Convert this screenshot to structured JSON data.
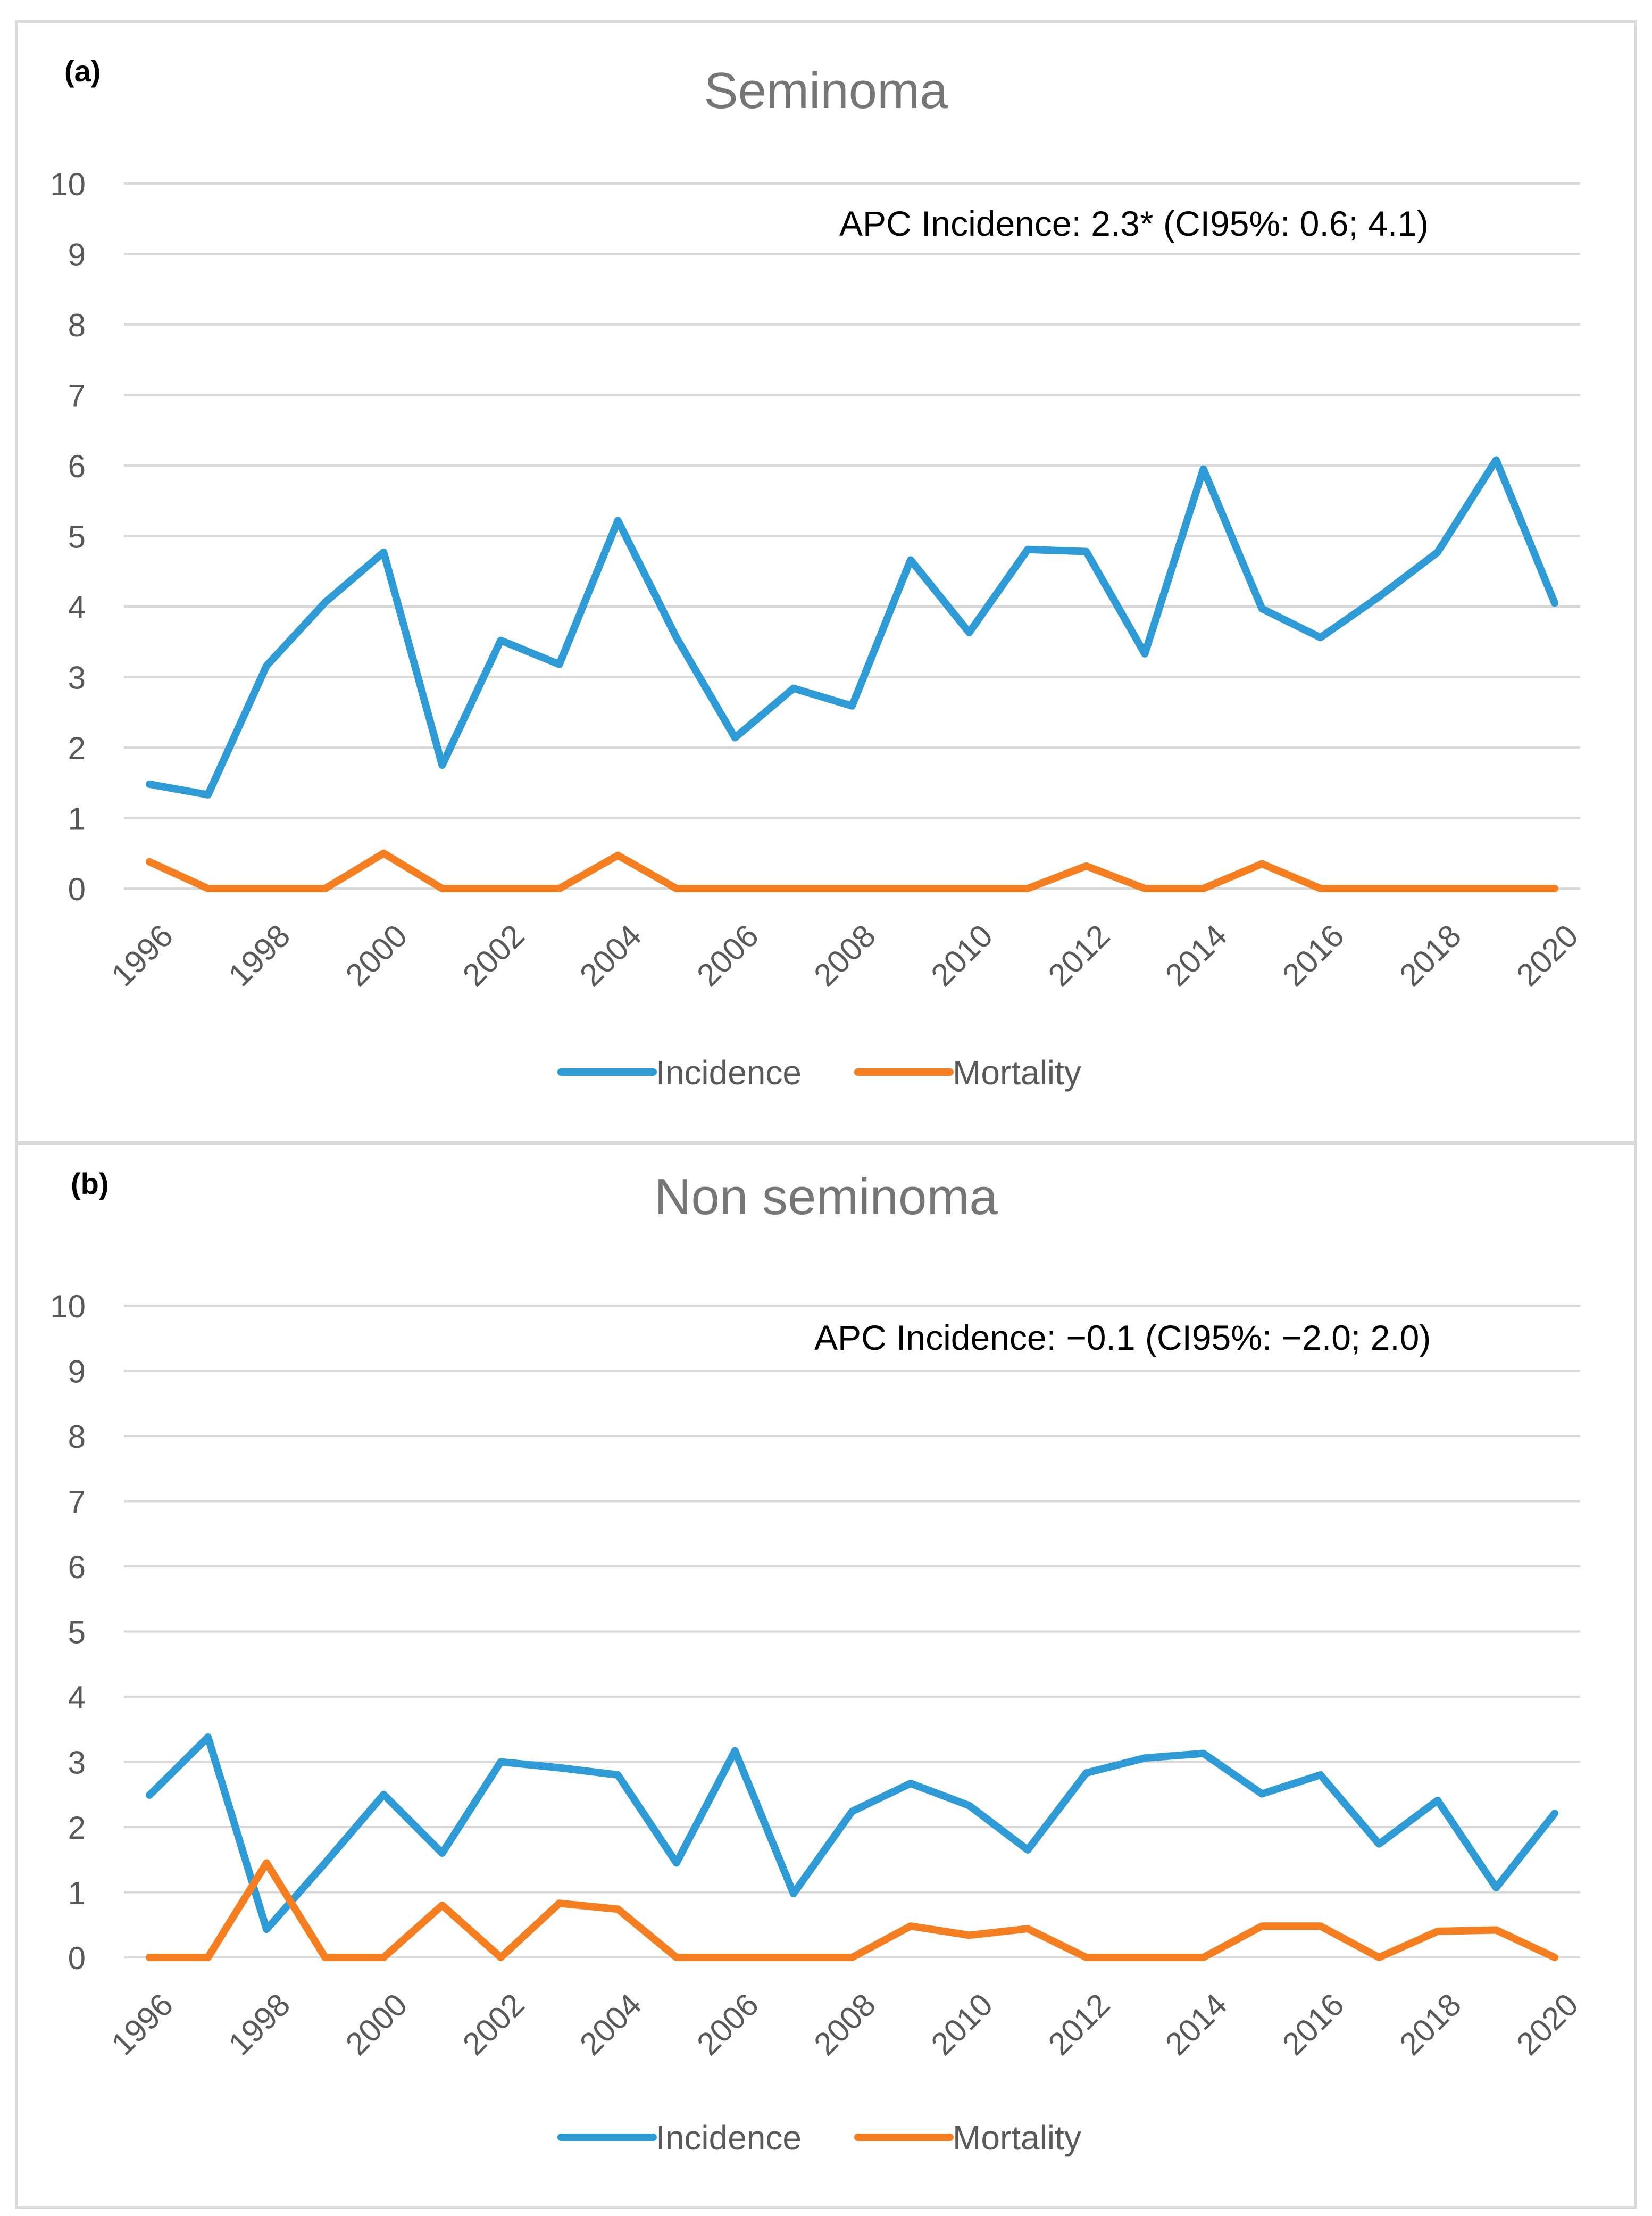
{
  "chart_data": [
    {
      "type": "line",
      "panel_label": "(a)",
      "title": "Seminoma",
      "annotation": "APC Incidence: 2.3* (CI95%: 0.6; 4.1)",
      "x": [
        1996,
        1997,
        1998,
        1999,
        2000,
        2001,
        2002,
        2003,
        2004,
        2005,
        2006,
        2007,
        2008,
        2009,
        2010,
        2011,
        2012,
        2013,
        2014,
        2015,
        2016,
        2017,
        2018,
        2019,
        2020
      ],
      "x_tick_labels": [
        "1996",
        "1998",
        "2000",
        "2002",
        "2004",
        "2006",
        "2008",
        "2010",
        "2012",
        "2014",
        "2016",
        "2018",
        "2020"
      ],
      "y_tick_labels": [
        "0",
        "1",
        "2",
        "3",
        "4",
        "5",
        "6",
        "7",
        "8",
        "9",
        "10"
      ],
      "ylim": [
        0,
        10
      ],
      "series": [
        {
          "name": "Incidence",
          "color": "#2e9bd6",
          "values": [
            1.48,
            1.33,
            3.16,
            4.06,
            4.77,
            1.75,
            3.52,
            3.18,
            5.22,
            3.56,
            2.14,
            2.84,
            2.59,
            4.66,
            3.63,
            4.81,
            4.78,
            3.33,
            5.95,
            3.97,
            3.56,
            4.14,
            4.77,
            6.08,
            4.05
          ]
        },
        {
          "name": "Mortality",
          "color": "#f57f20",
          "values": [
            0.38,
            0,
            0,
            0,
            0.5,
            0,
            0,
            0,
            0.47,
            0,
            0,
            0,
            0,
            0,
            0,
            0,
            0.32,
            0,
            0,
            0.35,
            0,
            0,
            0,
            0,
            0
          ]
        }
      ],
      "legend": [
        "Incidence",
        "Mortality"
      ],
      "grid": true
    },
    {
      "type": "line",
      "panel_label": "(b)",
      "title": "Non seminoma",
      "annotation": "APC Incidence: −0.1 (CI95%: −2.0; 2.0)",
      "x": [
        1996,
        1997,
        1998,
        1999,
        2000,
        2001,
        2002,
        2003,
        2004,
        2005,
        2006,
        2007,
        2008,
        2009,
        2010,
        2011,
        2012,
        2013,
        2014,
        2015,
        2016,
        2017,
        2018,
        2019,
        2020
      ],
      "x_tick_labels": [
        "1996",
        "1998",
        "2000",
        "2002",
        "2004",
        "2006",
        "2008",
        "2010",
        "2012",
        "2014",
        "2016",
        "2018",
        "2020"
      ],
      "y_tick_labels": [
        "0",
        "1",
        "2",
        "3",
        "4",
        "5",
        "6",
        "7",
        "8",
        "9",
        "10"
      ],
      "ylim": [
        0,
        10
      ],
      "series": [
        {
          "name": "Incidence",
          "color": "#2e9bd6",
          "values": [
            2.49,
            3.38,
            0.43,
            1.45,
            2.5,
            1.6,
            3.0,
            2.91,
            2.8,
            1.45,
            3.17,
            0.98,
            2.24,
            2.67,
            2.33,
            1.65,
            2.83,
            3.06,
            3.13,
            2.51,
            2.8,
            1.74,
            2.41,
            1.07,
            2.21
          ]
        },
        {
          "name": "Mortality",
          "color": "#f57f20",
          "values": [
            0,
            0,
            1.45,
            0,
            0,
            0.8,
            0,
            0.83,
            0.74,
            0,
            0,
            0,
            0,
            0.48,
            0.34,
            0.44,
            0,
            0,
            0,
            0.48,
            0.48,
            0,
            0.4,
            0.42,
            0
          ]
        }
      ],
      "legend": [
        "Incidence",
        "Mortality"
      ],
      "grid": true
    }
  ]
}
